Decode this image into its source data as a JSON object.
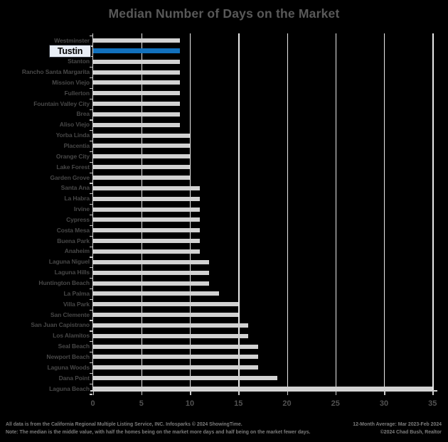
{
  "title": "Median Number of Days on the Market",
  "chart_data": {
    "type": "bar",
    "orientation": "horizontal",
    "title": "Median Number of Days on the Market",
    "categories": [
      "Westminster",
      "Tustin",
      "Stanton",
      "Rancho Santa Margarita",
      "Mission Viejo",
      "Fullerton",
      "Fountain Valley City",
      "Brea",
      "Aliso Viejo",
      "Yorba Linda",
      "Placentia",
      "Orange City",
      "Lake Forest",
      "Garden Grove",
      "Santa Ana",
      "La Habra",
      "Irvine",
      "Cypress",
      "Costa Mesa",
      "Buena Park",
      "Anaheim",
      "Laguna Niguel",
      "Laguna Hills",
      "Huntington Beach",
      "La Palma",
      "Villa Park",
      "San Clemente",
      "San Juan Capistrano",
      "Los Alamitos",
      "Seal Beach",
      "Newport Beach",
      "Laguna Woods",
      "Dana Point",
      "Laguna Beach"
    ],
    "values": [
      9,
      9,
      9,
      9,
      9,
      9,
      9,
      9,
      9,
      10,
      10,
      10,
      10,
      10,
      11,
      11,
      11,
      11,
      11,
      11,
      11,
      12,
      12,
      12,
      13,
      15,
      15,
      16,
      16,
      17,
      17,
      17,
      19,
      35
    ],
    "highlight": {
      "category": "Tustin",
      "index": 1,
      "color": "#1271bd"
    },
    "bar_color": "#d2d2d2",
    "x_ticks": [
      0,
      5,
      10,
      15,
      20,
      25,
      30,
      35
    ],
    "xlim": [
      0,
      35
    ],
    "grid": "vertical gridlines at each x tick, light on black",
    "legend": "none",
    "background": "#000000"
  },
  "footnotes": {
    "left_line1": "All data is from the California Regional Multiple Listing Service, INC. Infosparks © 2024 ShowingTime.",
    "left_line2": "Note: The median is the middle value, with half the homes being on the market more days and half being on the market fewer days.",
    "right_line1": "12-Month Average: Mar 2023-Feb 2024",
    "right_line2": "©2024 Chad Bush, Realtor"
  },
  "colors": {
    "background": "#000000",
    "title_text": "#595959",
    "bar": "#d2d2d2",
    "highlight_bar": "#1271bd",
    "category_text": "#484848",
    "tick_text": "#525252",
    "gridline": "#e9e9e9",
    "footnote_text": "#7d7d7d",
    "highlight_label_bg": "#e9eef6"
  }
}
